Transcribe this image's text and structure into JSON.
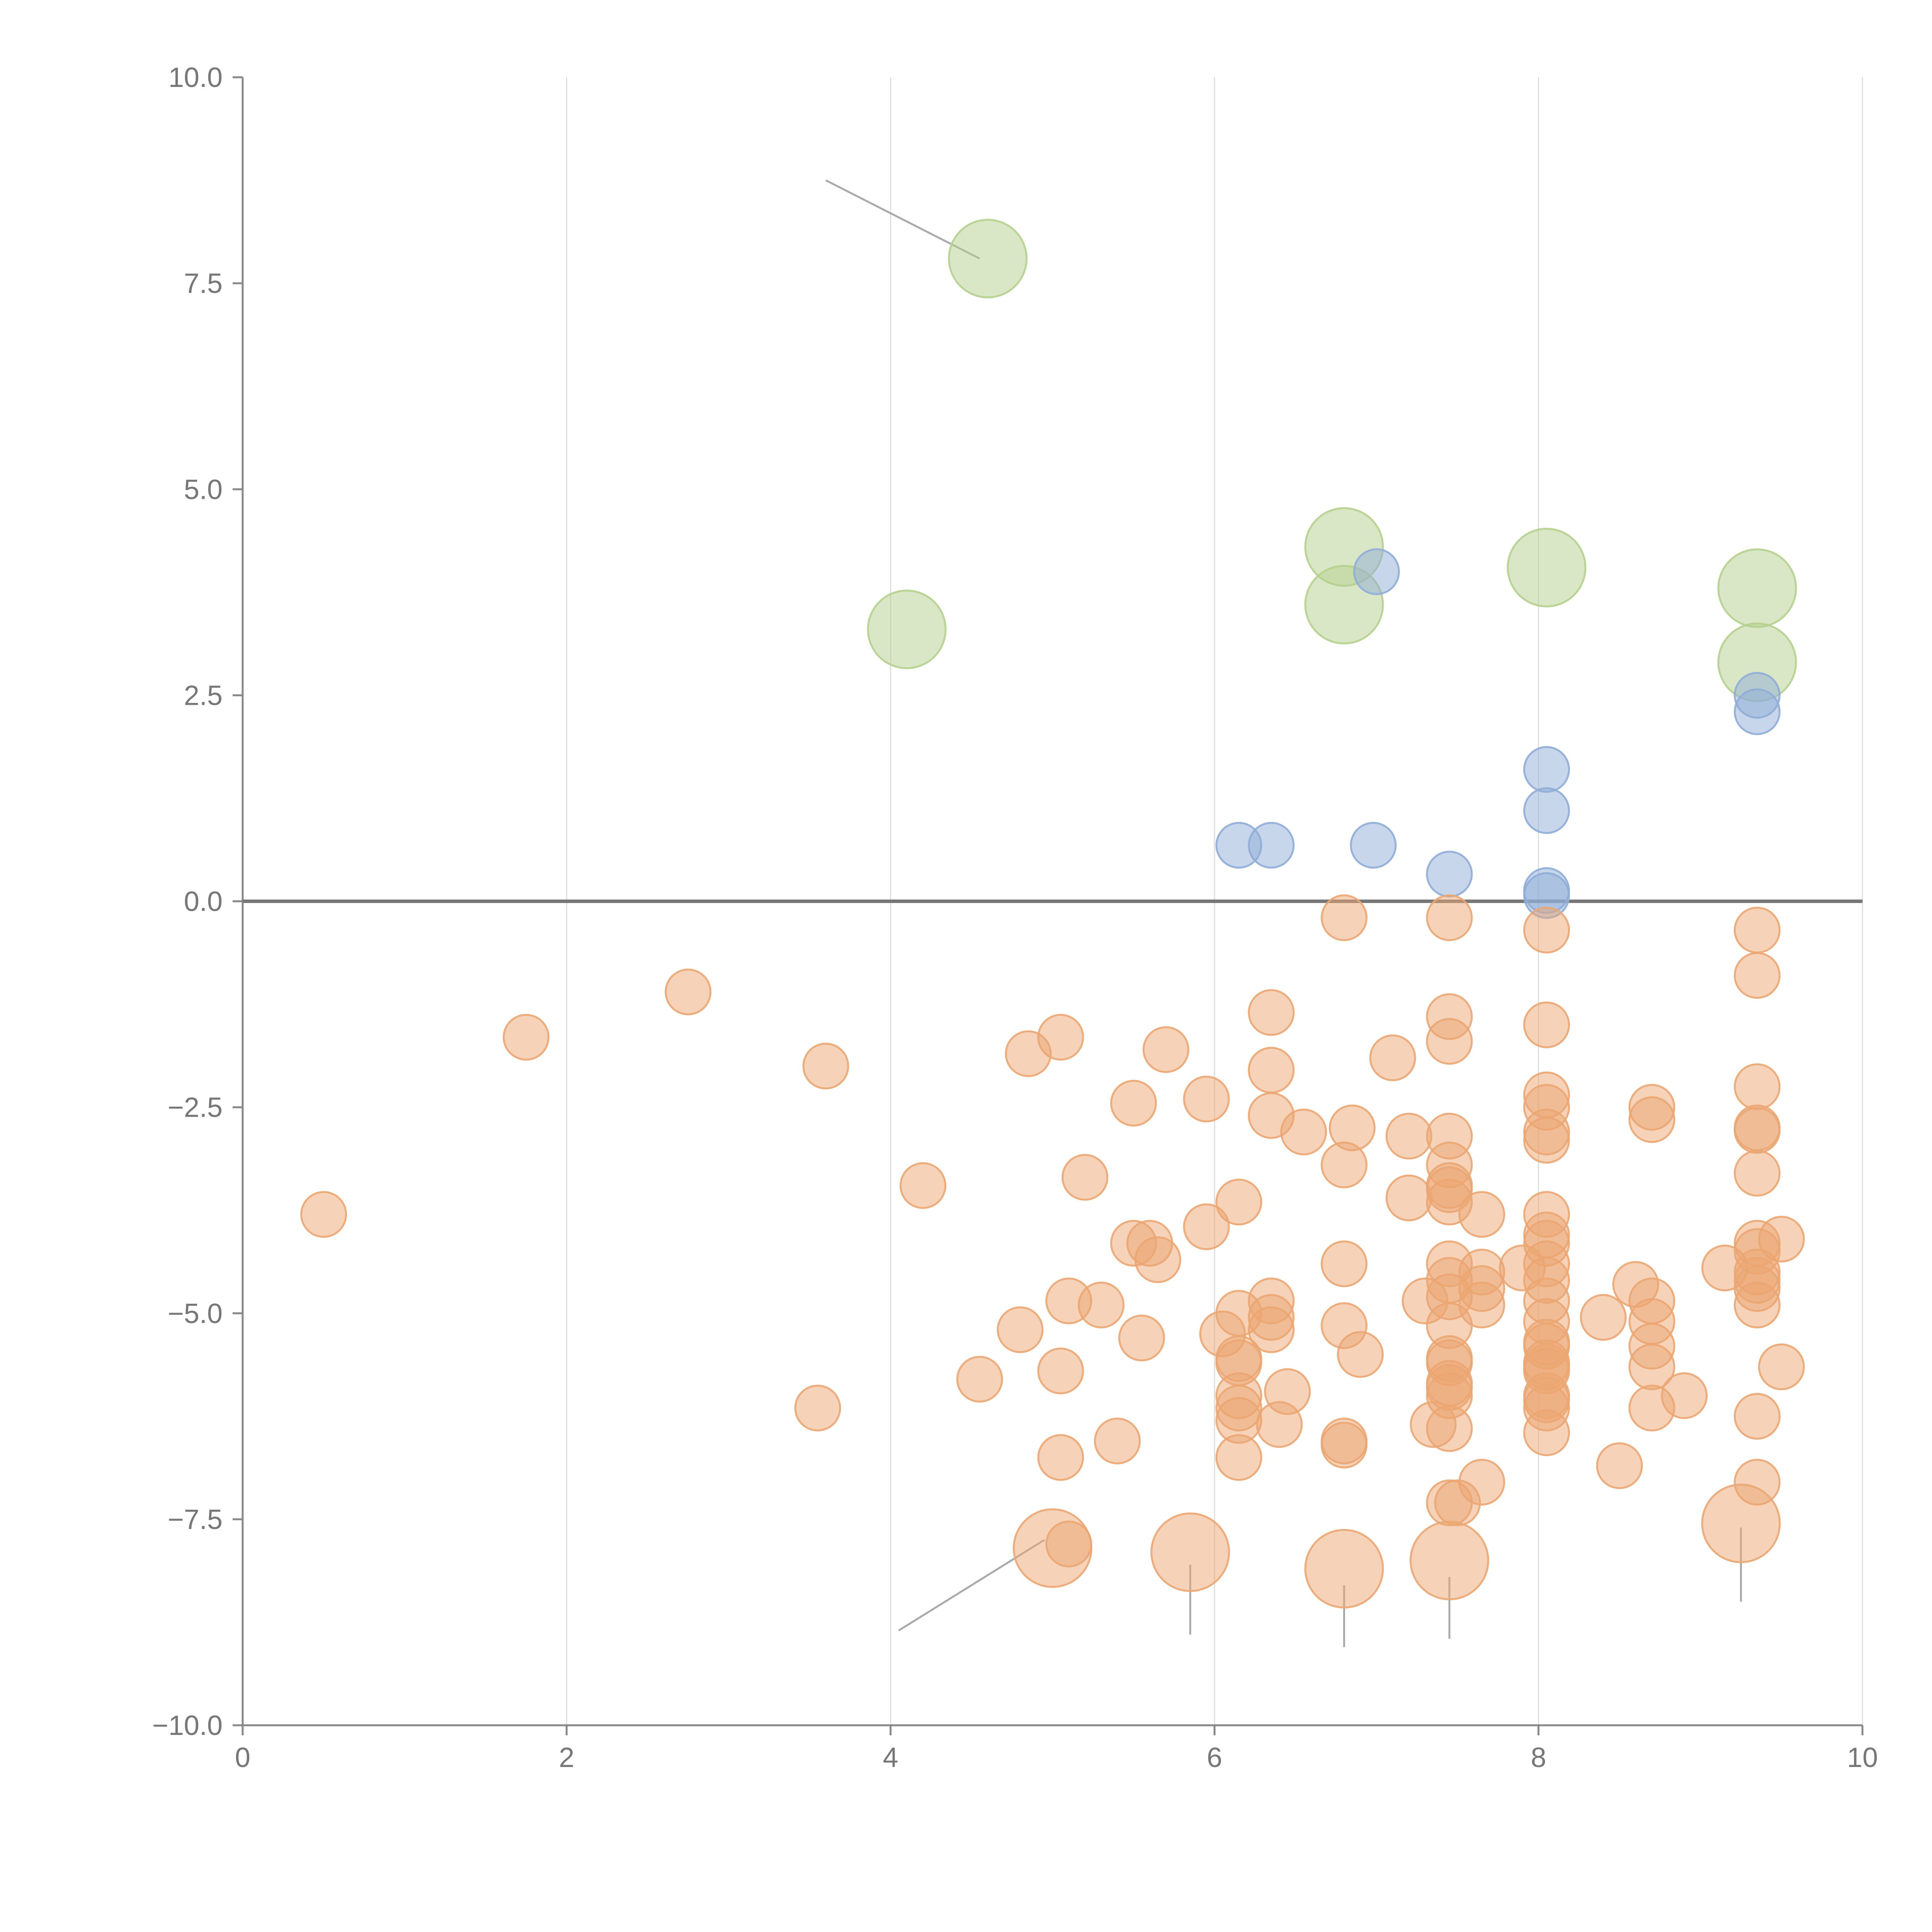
{
  "chart_data": {
    "type": "scatter",
    "title": "",
    "xlabel": "",
    "ylabel": "",
    "xlim": [
      0,
      10
    ],
    "ylim": [
      -10,
      10
    ],
    "x_ticks": [
      {
        "value": 0,
        "label": "0"
      },
      {
        "value": 2,
        "label": "2"
      },
      {
        "value": 4,
        "label": "4"
      },
      {
        "value": 6,
        "label": "6"
      },
      {
        "value": 8,
        "label": "8"
      },
      {
        "value": 10,
        "label": "10"
      }
    ],
    "y_ticks": [
      {
        "value": 10,
        "label": "10.0"
      },
      {
        "value": 7.5,
        "label": "7.5"
      },
      {
        "value": 5,
        "label": "5.0"
      },
      {
        "value": 2.5,
        "label": "2.5"
      },
      {
        "value": 0,
        "label": "0.0"
      },
      {
        "value": -2.5,
        "label": "−2.5"
      },
      {
        "value": -5,
        "label": "−5.0"
      },
      {
        "value": -7.5,
        "label": "−7.5"
      },
      {
        "value": -10,
        "label": "−10.0"
      }
    ],
    "grid": {
      "vertical": true,
      "horizontal": false
    },
    "zero_line": true,
    "legend": "none",
    "series": [
      {
        "name": "green",
        "color": "#b5d08e",
        "size": 3,
        "points": [
          [
            4.6,
            7.8
          ],
          [
            4.1,
            3.3
          ],
          [
            6.8,
            4.3
          ],
          [
            6.8,
            3.6
          ],
          [
            8.05,
            4.05
          ],
          [
            9.35,
            3.8
          ],
          [
            9.35,
            2.9
          ]
        ]
      },
      {
        "name": "blue",
        "color": "#8fadd8",
        "size": 1,
        "points": [
          [
            7.0,
            4.0
          ],
          [
            9.35,
            2.5
          ],
          [
            9.35,
            2.3
          ],
          [
            8.05,
            1.6
          ],
          [
            8.05,
            1.1
          ],
          [
            6.15,
            0.68
          ],
          [
            6.35,
            0.68
          ],
          [
            6.98,
            0.68
          ],
          [
            7.45,
            0.33
          ],
          [
            8.05,
            0.13
          ],
          [
            8.05,
            0.07
          ]
        ]
      },
      {
        "name": "orange",
        "color": "#eba672",
        "size": 1,
        "points": [
          [
            6.8,
            -0.2
          ],
          [
            7.45,
            -0.2
          ],
          [
            8.05,
            -0.35
          ],
          [
            9.35,
            -0.35
          ],
          [
            9.35,
            -0.9
          ],
          [
            2.75,
            -1.1
          ],
          [
            1.75,
            -1.65
          ],
          [
            6.35,
            -1.35
          ],
          [
            7.45,
            -1.4
          ],
          [
            7.45,
            -1.7
          ],
          [
            8.05,
            -1.5
          ],
          [
            5.05,
            -1.65
          ],
          [
            4.85,
            -1.85
          ],
          [
            5.7,
            -1.8
          ],
          [
            7.1,
            -1.9
          ],
          [
            3.6,
            -2.0
          ],
          [
            6.35,
            -2.05
          ],
          [
            8.05,
            -2.35
          ],
          [
            9.35,
            -2.25
          ],
          [
            5.5,
            -2.45
          ],
          [
            5.95,
            -2.4
          ],
          [
            6.35,
            -2.6
          ],
          [
            8.05,
            -2.5
          ],
          [
            8.7,
            -2.5
          ],
          [
            8.7,
            -2.65
          ],
          [
            6.55,
            -2.8
          ],
          [
            6.85,
            -2.75
          ],
          [
            7.2,
            -2.85
          ],
          [
            7.45,
            -2.85
          ],
          [
            8.05,
            -2.8
          ],
          [
            8.05,
            -2.9
          ],
          [
            9.35,
            -2.75
          ],
          [
            9.35,
            -2.78
          ],
          [
            6.8,
            -3.2
          ],
          [
            7.45,
            -3.2
          ],
          [
            9.35,
            -3.3
          ],
          [
            5.2,
            -3.35
          ],
          [
            4.2,
            -3.45
          ],
          [
            7.45,
            -3.45
          ],
          [
            7.45,
            -3.5
          ],
          [
            7.2,
            -3.6
          ],
          [
            7.45,
            -3.65
          ],
          [
            6.15,
            -3.65
          ],
          [
            7.65,
            -3.8
          ],
          [
            8.05,
            -3.8
          ],
          [
            0.5,
            -3.8
          ],
          [
            5.95,
            -3.95
          ],
          [
            8.05,
            -4.05
          ],
          [
            8.05,
            -4.15
          ],
          [
            9.5,
            -4.1
          ],
          [
            9.35,
            -4.15
          ],
          [
            5.5,
            -4.15
          ],
          [
            5.6,
            -4.15
          ],
          [
            9.35,
            -4.25
          ],
          [
            5.65,
            -4.35
          ],
          [
            6.8,
            -4.4
          ],
          [
            7.45,
            -4.4
          ],
          [
            8.05,
            -4.4
          ],
          [
            9.15,
            -4.45
          ],
          [
            7.65,
            -4.5
          ],
          [
            7.9,
            -4.45
          ],
          [
            9.35,
            -4.5
          ],
          [
            7.45,
            -4.6
          ],
          [
            8.05,
            -4.6
          ],
          [
            9.35,
            -4.6
          ],
          [
            8.6,
            -4.65
          ],
          [
            7.65,
            -4.7
          ],
          [
            9.35,
            -4.7
          ],
          [
            7.45,
            -4.8
          ],
          [
            8.7,
            -4.85
          ],
          [
            7.3,
            -4.85
          ],
          [
            5.1,
            -4.85
          ],
          [
            6.35,
            -4.85
          ],
          [
            8.05,
            -4.85
          ],
          [
            5.3,
            -4.9
          ],
          [
            7.65,
            -4.9
          ],
          [
            9.35,
            -4.9
          ],
          [
            6.15,
            -5.0
          ],
          [
            6.35,
            -5.05
          ],
          [
            8.4,
            -5.05
          ],
          [
            8.7,
            -5.1
          ],
          [
            8.05,
            -5.1
          ],
          [
            4.8,
            -5.2
          ],
          [
            6.35,
            -5.2
          ],
          [
            6.8,
            -5.15
          ],
          [
            7.45,
            -5.15
          ],
          [
            5.55,
            -5.3
          ],
          [
            6.05,
            -5.25
          ],
          [
            8.05,
            -5.35
          ],
          [
            8.05,
            -5.4
          ],
          [
            8.7,
            -5.4
          ],
          [
            6.9,
            -5.5
          ],
          [
            6.15,
            -5.55
          ],
          [
            7.45,
            -5.55
          ],
          [
            7.45,
            -5.6
          ],
          [
            6.15,
            -5.6
          ],
          [
            8.05,
            -5.6
          ],
          [
            8.05,
            -5.65
          ],
          [
            9.5,
            -5.65
          ],
          [
            8.05,
            -5.7
          ],
          [
            5.05,
            -5.7
          ],
          [
            8.7,
            -5.65
          ],
          [
            4.55,
            -5.8
          ],
          [
            7.45,
            -5.85
          ],
          [
            7.45,
            -5.9
          ],
          [
            6.45,
            -5.95
          ],
          [
            8.05,
            -6.0
          ],
          [
            8.05,
            -6.05
          ],
          [
            6.15,
            -6.0
          ],
          [
            7.45,
            -6.0
          ],
          [
            8.9,
            -6.0
          ],
          [
            3.55,
            -6.15
          ],
          [
            6.15,
            -6.15
          ],
          [
            8.7,
            -6.15
          ],
          [
            8.05,
            -6.15
          ],
          [
            9.35,
            -6.25
          ],
          [
            6.15,
            -6.3
          ],
          [
            6.4,
            -6.35
          ],
          [
            7.35,
            -6.35
          ],
          [
            7.45,
            -6.4
          ],
          [
            8.05,
            -6.45
          ],
          [
            5.4,
            -6.55
          ],
          [
            6.8,
            -6.55
          ],
          [
            6.8,
            -6.6
          ],
          [
            5.05,
            -6.75
          ],
          [
            6.15,
            -6.75
          ],
          [
            8.5,
            -6.85
          ],
          [
            7.65,
            -7.05
          ],
          [
            9.35,
            -7.05
          ],
          [
            7.45,
            -7.3
          ],
          [
            7.5,
            -7.3
          ],
          [
            5.1,
            -7.8
          ]
        ]
      },
      {
        "name": "orange-large",
        "color": "#eba672",
        "size": 3,
        "points": [
          [
            5.0,
            -7.85
          ],
          [
            5.85,
            -7.9
          ],
          [
            6.8,
            -8.1
          ],
          [
            7.45,
            -8.0
          ],
          [
            9.25,
            -7.55
          ]
        ]
      }
    ],
    "annotations": [
      {
        "text": "",
        "leader": [
          [
            3.6,
            8.75
          ],
          [
            4.55,
            7.8
          ]
        ],
        "style": "gray"
      },
      {
        "text": "",
        "leader": [
          [
            4.05,
            -8.85
          ],
          [
            4.95,
            -7.75
          ]
        ],
        "style": "gray"
      },
      {
        "text": "",
        "leader": [
          [
            5.85,
            -8.05
          ],
          [
            5.85,
            -8.9
          ]
        ],
        "style": "gray"
      },
      {
        "text": "",
        "leader": [
          [
            6.8,
            -8.3
          ],
          [
            6.8,
            -9.05
          ]
        ],
        "style": "gray"
      },
      {
        "text": "",
        "leader": [
          [
            7.45,
            -8.2
          ],
          [
            7.45,
            -8.95
          ]
        ],
        "style": "gray"
      },
      {
        "text": "",
        "leader": [
          [
            9.25,
            -7.6
          ],
          [
            9.25,
            -8.5
          ]
        ],
        "style": "gray"
      },
      {
        "text": "",
        "leader": [
          [
            6.85,
            4.4
          ],
          [
            6.95,
            4.6
          ]
        ],
        "style": "white"
      },
      {
        "text": "",
        "leader": [
          [
            6.85,
            3.55
          ],
          [
            6.95,
            3.3
          ]
        ],
        "style": "white"
      },
      {
        "text": "",
        "leader": [
          [
            8.1,
            4.1
          ],
          [
            8.25,
            4.3
          ]
        ],
        "style": "white"
      },
      {
        "text": "",
        "leader": [
          [
            9.28,
            2.4
          ],
          [
            9.35,
            2.8
          ]
        ],
        "style": "white"
      }
    ]
  }
}
